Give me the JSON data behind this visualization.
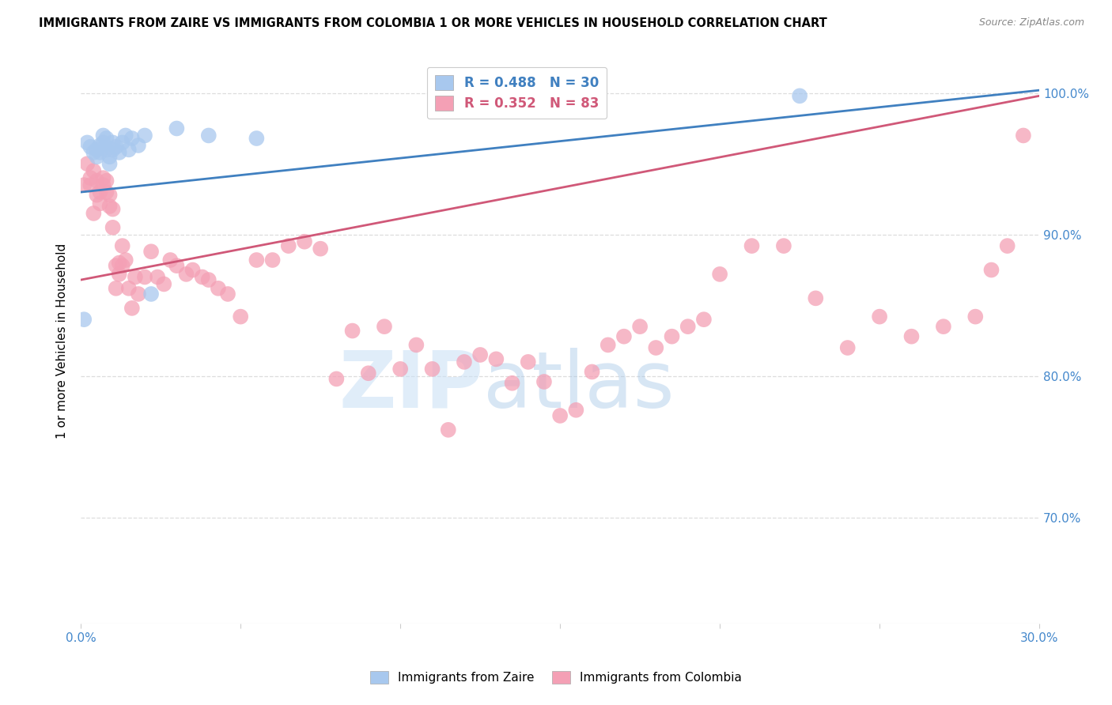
{
  "title": "IMMIGRANTS FROM ZAIRE VS IMMIGRANTS FROM COLOMBIA 1 OR MORE VEHICLES IN HOUSEHOLD CORRELATION CHART",
  "source": "Source: ZipAtlas.com",
  "ylabel": "1 or more Vehicles in Household",
  "xlim": [
    0.0,
    0.3
  ],
  "ylim": [
    0.625,
    1.025
  ],
  "yticks": [
    0.7,
    0.8,
    0.9,
    1.0
  ],
  "ytick_labels": [
    "70.0%",
    "80.0%",
    "90.0%",
    "100.0%"
  ],
  "xticks": [
    0.0,
    0.05,
    0.1,
    0.15,
    0.2,
    0.25,
    0.3
  ],
  "xtick_labels": [
    "0.0%",
    "",
    "",
    "",
    "",
    "",
    "30.0%"
  ],
  "legend_zaire": "Immigrants from Zaire",
  "legend_colombia": "Immigrants from Colombia",
  "R_zaire": 0.488,
  "N_zaire": 30,
  "R_colombia": 0.352,
  "N_colombia": 83,
  "color_zaire": "#A8C8EE",
  "color_colombia": "#F4A0B5",
  "line_color_zaire": "#4080C0",
  "line_color_colombia": "#D05878",
  "watermark_zip": "ZIP",
  "watermark_atlas": "atlas",
  "background_color": "#FFFFFF",
  "title_fontsize": 10.5,
  "axis_label_color": "#4488CC",
  "zaire_x": [
    0.001,
    0.002,
    0.003,
    0.004,
    0.005,
    0.005,
    0.006,
    0.006,
    0.007,
    0.007,
    0.008,
    0.008,
    0.009,
    0.009,
    0.01,
    0.01,
    0.011,
    0.012,
    0.013,
    0.014,
    0.015,
    0.016,
    0.018,
    0.02,
    0.022,
    0.03,
    0.04,
    0.055,
    0.145,
    0.225
  ],
  "zaire_y": [
    0.84,
    0.965,
    0.962,
    0.958,
    0.96,
    0.955,
    0.963,
    0.958,
    0.965,
    0.97,
    0.968,
    0.96,
    0.955,
    0.95,
    0.96,
    0.965,
    0.962,
    0.958,
    0.965,
    0.97,
    0.96,
    0.968,
    0.963,
    0.97,
    0.858,
    0.975,
    0.97,
    0.968,
    0.998,
    0.998
  ],
  "colombia_x": [
    0.001,
    0.002,
    0.003,
    0.003,
    0.004,
    0.004,
    0.005,
    0.005,
    0.006,
    0.006,
    0.007,
    0.007,
    0.008,
    0.008,
    0.009,
    0.009,
    0.01,
    0.01,
    0.011,
    0.011,
    0.012,
    0.012,
    0.013,
    0.013,
    0.014,
    0.015,
    0.016,
    0.017,
    0.018,
    0.02,
    0.022,
    0.024,
    0.026,
    0.028,
    0.03,
    0.033,
    0.035,
    0.038,
    0.04,
    0.043,
    0.046,
    0.05,
    0.055,
    0.06,
    0.065,
    0.07,
    0.075,
    0.08,
    0.085,
    0.09,
    0.095,
    0.1,
    0.105,
    0.11,
    0.115,
    0.12,
    0.125,
    0.13,
    0.135,
    0.14,
    0.145,
    0.15,
    0.155,
    0.16,
    0.165,
    0.17,
    0.175,
    0.18,
    0.185,
    0.19,
    0.195,
    0.2,
    0.21,
    0.22,
    0.23,
    0.24,
    0.25,
    0.26,
    0.27,
    0.28,
    0.285,
    0.29,
    0.295
  ],
  "colombia_y": [
    0.935,
    0.95,
    0.94,
    0.935,
    0.945,
    0.915,
    0.938,
    0.928,
    0.93,
    0.922,
    0.94,
    0.935,
    0.938,
    0.93,
    0.928,
    0.92,
    0.918,
    0.905,
    0.878,
    0.862,
    0.872,
    0.88,
    0.892,
    0.878,
    0.882,
    0.862,
    0.848,
    0.87,
    0.858,
    0.87,
    0.888,
    0.87,
    0.865,
    0.882,
    0.878,
    0.872,
    0.875,
    0.87,
    0.868,
    0.862,
    0.858,
    0.842,
    0.882,
    0.882,
    0.892,
    0.895,
    0.89,
    0.798,
    0.832,
    0.802,
    0.835,
    0.805,
    0.822,
    0.805,
    0.762,
    0.81,
    0.815,
    0.812,
    0.795,
    0.81,
    0.796,
    0.772,
    0.776,
    0.803,
    0.822,
    0.828,
    0.835,
    0.82,
    0.828,
    0.835,
    0.84,
    0.872,
    0.892,
    0.892,
    0.855,
    0.82,
    0.842,
    0.828,
    0.835,
    0.842,
    0.875,
    0.892,
    0.97
  ],
  "blue_line_x": [
    0.0,
    0.3
  ],
  "blue_line_y": [
    0.93,
    1.002
  ],
  "pink_line_x": [
    0.0,
    0.3
  ],
  "pink_line_y": [
    0.868,
    0.998
  ]
}
